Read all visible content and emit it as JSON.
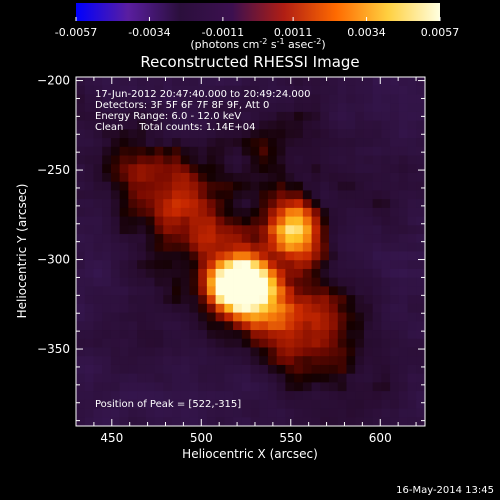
{
  "colorbar": {
    "ticks": [
      {
        "label": "-0.0057",
        "value": -0.0057
      },
      {
        "label": "-0.0034",
        "value": -0.0034
      },
      {
        "label": "-0.0011",
        "value": -0.0011
      },
      {
        "label": "0.0011",
        "value": 0.0011
      },
      {
        "label": "0.0034",
        "value": 0.0034
      },
      {
        "label": "0.0057",
        "value": 0.0057
      }
    ],
    "range": [
      -0.0057,
      0.0057
    ],
    "units_label": {
      "pre": "(photons cm",
      "e1": "-2",
      "mid1": " s",
      "e2": "-1",
      "mid2": " asec",
      "e3": "-2",
      "post": ")"
    },
    "colors": [
      "#0000ff",
      "#5a1ea0",
      "#2b0f3c",
      "#3c1050",
      "#b01e14",
      "#ff6a00",
      "#ffd040",
      "#ffffe0"
    ]
  },
  "chart_data": {
    "type": "heatmap",
    "title": "Reconstructed RHESSI Image",
    "xlabel": "Heliocentric X (arcsec)",
    "ylabel": "Heliocentric Y (arcsec)",
    "xlim": [
      430,
      625
    ],
    "ylim": [
      -393,
      -198
    ],
    "x_ticks": [
      450,
      500,
      550,
      600
    ],
    "y_ticks": [
      -200,
      -250,
      -300,
      -350
    ],
    "info_lines": [
      "17-Jun-2012 20:47:40.000 to 20:49:24.000",
      "Detectors: 3F 5F 6F 7F 8F 9F, Att 0",
      "Energy Range: 6.0 - 12.0 keV",
      "Clean     Total counts: 1.14E+04"
    ],
    "peak_label": "Position of Peak = [522,-315]",
    "peak_position": [
      522,
      -315
    ],
    "sources": [
      {
        "x": 522,
        "y": -315,
        "amplitude": 0.0057
      },
      {
        "x": 553,
        "y": -283,
        "amplitude": 0.0045
      }
    ]
  },
  "footer": {
    "timestamp": "16-May-2014 13:45"
  }
}
